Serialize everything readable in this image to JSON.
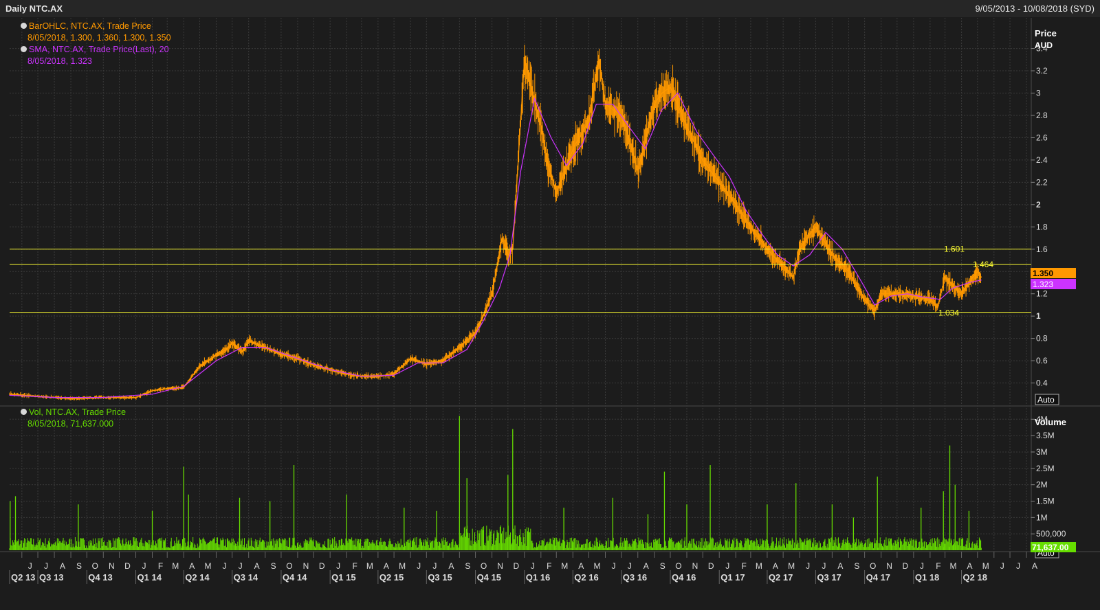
{
  "header": {
    "title": "Daily NTC.AX",
    "date_range": "9/05/2013 - 10/08/2018 (SYD)"
  },
  "legend": {
    "price_line1": "BarOHLC, NTC.AX, Trade Price",
    "price_line2": "8/05/2018, 1.300, 1.360, 1.300, 1.350",
    "sma_line1": "SMA, NTC.AX, Trade Price(Last),  20",
    "sma_line2": "8/05/2018, 1.323",
    "vol_line1": "Vol, NTC.AX, Trade Price",
    "vol_line2": "8/05/2018, 71,637.000"
  },
  "price_axis": {
    "title": "Price",
    "unit": "AUD",
    "auto_label": "Auto",
    "last_price_label": "1.350",
    "last_sma_label": "1.323"
  },
  "volume_axis": {
    "title": "Volume",
    "auto_label": "Auto",
    "last_volume_label": "71,637.00"
  },
  "colors": {
    "background": "#1c1c1c",
    "price": "#ff9900",
    "sma": "#cc33ff",
    "volume": "#66dd00",
    "hline": "#ffff33",
    "grid": "#3a3a3a"
  },
  "chart_data": [
    {
      "type": "line",
      "name": "price",
      "x": [
        "2013-05-09",
        "2013-07-01",
        "2013-09-01",
        "2013-11-01",
        "2014-01-01",
        "2014-02-01",
        "2014-03-01",
        "2014-04-01",
        "2014-05-01",
        "2014-06-01",
        "2014-06-20",
        "2014-07-01",
        "2014-07-20",
        "2014-08-01",
        "2014-09-01",
        "2014-10-01",
        "2014-11-01",
        "2014-12-01",
        "2015-01-01",
        "2015-02-01",
        "2015-03-01",
        "2015-04-01",
        "2015-05-01",
        "2015-06-01",
        "2015-07-01",
        "2015-08-01",
        "2015-09-01",
        "2015-10-01",
        "2015-10-20",
        "2015-11-01",
        "2015-11-20",
        "2015-12-01",
        "2015-12-10",
        "2016-01-01",
        "2016-02-01",
        "2016-02-15",
        "2016-03-01",
        "2016-04-01",
        "2016-05-01",
        "2016-05-20",
        "2016-06-01",
        "2016-07-01",
        "2016-07-15",
        "2016-08-01",
        "2016-09-01",
        "2016-09-15",
        "2016-10-01",
        "2016-11-01",
        "2016-12-01",
        "2017-01-01",
        "2017-02-01",
        "2017-03-01",
        "2017-04-01",
        "2017-05-01",
        "2017-05-20",
        "2017-06-01",
        "2017-06-15",
        "2017-07-01",
        "2017-08-01",
        "2017-09-01",
        "2017-10-01",
        "2017-10-20",
        "2017-11-01",
        "2017-12-01",
        "2018-01-01",
        "2018-02-01",
        "2018-02-15",
        "2018-03-01",
        "2018-03-20",
        "2018-04-01",
        "2018-04-15",
        "2018-05-01",
        "2018-05-08"
      ],
      "values": [
        0.3,
        0.28,
        0.26,
        0.27,
        0.27,
        0.33,
        0.35,
        0.36,
        0.55,
        0.65,
        0.7,
        0.76,
        0.68,
        0.78,
        0.72,
        0.66,
        0.62,
        0.56,
        0.52,
        0.48,
        0.46,
        0.46,
        0.48,
        0.62,
        0.57,
        0.6,
        0.72,
        0.85,
        1.05,
        1.2,
        1.7,
        1.55,
        1.6,
        3.3,
        2.7,
        2.35,
        2.1,
        2.5,
        2.75,
        3.3,
        2.9,
        2.8,
        2.6,
        2.3,
        2.9,
        3.0,
        3.05,
        2.7,
        2.4,
        2.2,
        2.0,
        1.8,
        1.6,
        1.45,
        1.35,
        1.6,
        1.7,
        1.8,
        1.55,
        1.4,
        1.15,
        1.05,
        1.2,
        1.2,
        1.18,
        1.15,
        1.08,
        1.35,
        1.25,
        1.2,
        1.3,
        1.4,
        1.35
      ],
      "y_ticks": [
        0.4,
        0.6,
        0.8,
        1,
        1.2,
        1.4,
        1.6,
        1.8,
        2,
        2.2,
        2.4,
        2.6,
        2.8,
        3,
        3.2,
        3.4
      ],
      "y_tick_labels": [
        "0.4",
        "0.6",
        "0.8",
        "1",
        "1.2",
        "1.4",
        "1.6",
        "1.8",
        "2",
        "2.2",
        "2.4",
        "2.6",
        "2.8",
        "3",
        "3.2",
        "3.4"
      ],
      "ylim": [
        0.2,
        3.65
      ],
      "horizontal_lines": [
        {
          "value": 1.601,
          "label": "1.601"
        },
        {
          "value": 1.464,
          "label": "1.464"
        },
        {
          "value": 1.034,
          "label": "1.034"
        }
      ],
      "grid": true
    },
    {
      "type": "line",
      "name": "sma",
      "period": 20,
      "x": [
        "2013-05-09",
        "2013-08-01",
        "2013-11-01",
        "2014-02-01",
        "2014-04-01",
        "2014-06-01",
        "2014-07-20",
        "2014-09-01",
        "2014-11-01",
        "2015-01-01",
        "2015-03-01",
        "2015-05-01",
        "2015-06-15",
        "2015-08-01",
        "2015-09-15",
        "2015-10-15",
        "2015-11-15",
        "2015-12-05",
        "2015-12-25",
        "2016-01-20",
        "2016-02-20",
        "2016-03-20",
        "2016-04-20",
        "2016-05-15",
        "2016-06-15",
        "2016-07-15",
        "2016-08-15",
        "2016-09-15",
        "2016-10-15",
        "2016-11-20",
        "2016-12-20",
        "2017-01-20",
        "2017-02-20",
        "2017-03-20",
        "2017-04-20",
        "2017-05-20",
        "2017-06-20",
        "2017-07-20",
        "2017-08-20",
        "2017-09-20",
        "2017-10-20",
        "2017-11-20",
        "2017-12-20",
        "2018-01-20",
        "2018-02-20",
        "2018-03-15",
        "2018-04-15",
        "2018-05-08"
      ],
      "values": [
        0.29,
        0.27,
        0.27,
        0.3,
        0.37,
        0.6,
        0.72,
        0.72,
        0.62,
        0.52,
        0.46,
        0.47,
        0.58,
        0.58,
        0.7,
        0.95,
        1.25,
        1.55,
        2.3,
        2.95,
        2.6,
        2.35,
        2.55,
        2.9,
        2.9,
        2.7,
        2.5,
        2.85,
        3.0,
        2.65,
        2.45,
        2.25,
        1.95,
        1.75,
        1.55,
        1.45,
        1.55,
        1.75,
        1.6,
        1.35,
        1.1,
        1.18,
        1.2,
        1.17,
        1.15,
        1.25,
        1.3,
        1.323
      ]
    },
    {
      "type": "bar",
      "name": "volume",
      "x": [
        "2013-05-10",
        "2013-05-20",
        "2013-09-15",
        "2014-02-01",
        "2014-04-01",
        "2014-04-10",
        "2014-07-15",
        "2014-09-10",
        "2014-10-25",
        "2015-02-01",
        "2015-05-20",
        "2015-07-20",
        "2015-09-01",
        "2015-09-15",
        "2015-12-01",
        "2015-12-10",
        "2016-03-15",
        "2016-06-15",
        "2016-08-20",
        "2016-09-20",
        "2016-11-01",
        "2016-12-15",
        "2017-04-01",
        "2017-05-25",
        "2017-08-01",
        "2017-09-10",
        "2017-10-25",
        "2018-01-15",
        "2018-02-26",
        "2018-03-10",
        "2018-03-20",
        "2018-04-15",
        "2018-05-08"
      ],
      "values": [
        1500000,
        1650000,
        1400000,
        1200000,
        2550000,
        1700000,
        1600000,
        1500000,
        2600000,
        1700000,
        1300000,
        1200000,
        4100000,
        2200000,
        2300000,
        3700000,
        1300000,
        1600000,
        1100000,
        2400000,
        1400000,
        2600000,
        1400000,
        2050000,
        1400000,
        1000000,
        2250000,
        1300000,
        1800000,
        3200000,
        2000000,
        1200000,
        71637
      ],
      "y_ticks": [
        500000,
        1000000,
        1500000,
        2000000,
        2500000,
        3000000,
        3500000,
        4000000
      ],
      "y_tick_labels": [
        "500,000",
        "1M",
        "1.5M",
        "2M",
        "2.5M",
        "3M",
        "3.5M",
        "4M"
      ],
      "ylim": [
        0,
        4300000
      ]
    }
  ],
  "time_axis": {
    "months": [
      "J",
      "J",
      "A",
      "S",
      "O",
      "N",
      "D",
      "J",
      "F",
      "M",
      "A",
      "M",
      "J",
      "J",
      "A",
      "S",
      "O",
      "N",
      "D",
      "J",
      "F",
      "M",
      "A",
      "M",
      "J",
      "J",
      "A",
      "S",
      "O",
      "N",
      "D",
      "J",
      "F",
      "M",
      "A",
      "M",
      "J",
      "J",
      "A",
      "S",
      "O",
      "N",
      "D",
      "J",
      "F",
      "M",
      "A",
      "M",
      "J",
      "J",
      "A",
      "S",
      "O",
      "N",
      "D",
      "J",
      "F",
      "M",
      "A",
      "M",
      "J",
      "J",
      "A"
    ],
    "quarters": [
      "Q2 13",
      "Q3 13",
      "Q4 13",
      "Q1 14",
      "Q2 14",
      "Q3 14",
      "Q4 14",
      "Q1 15",
      "Q2 15",
      "Q3 15",
      "Q4 15",
      "Q1 16",
      "Q2 16",
      "Q3 16",
      "Q4 16",
      "Q1 17",
      "Q2 17",
      "Q3 17",
      "Q4 17",
      "Q1 18",
      "Q2 18"
    ]
  }
}
